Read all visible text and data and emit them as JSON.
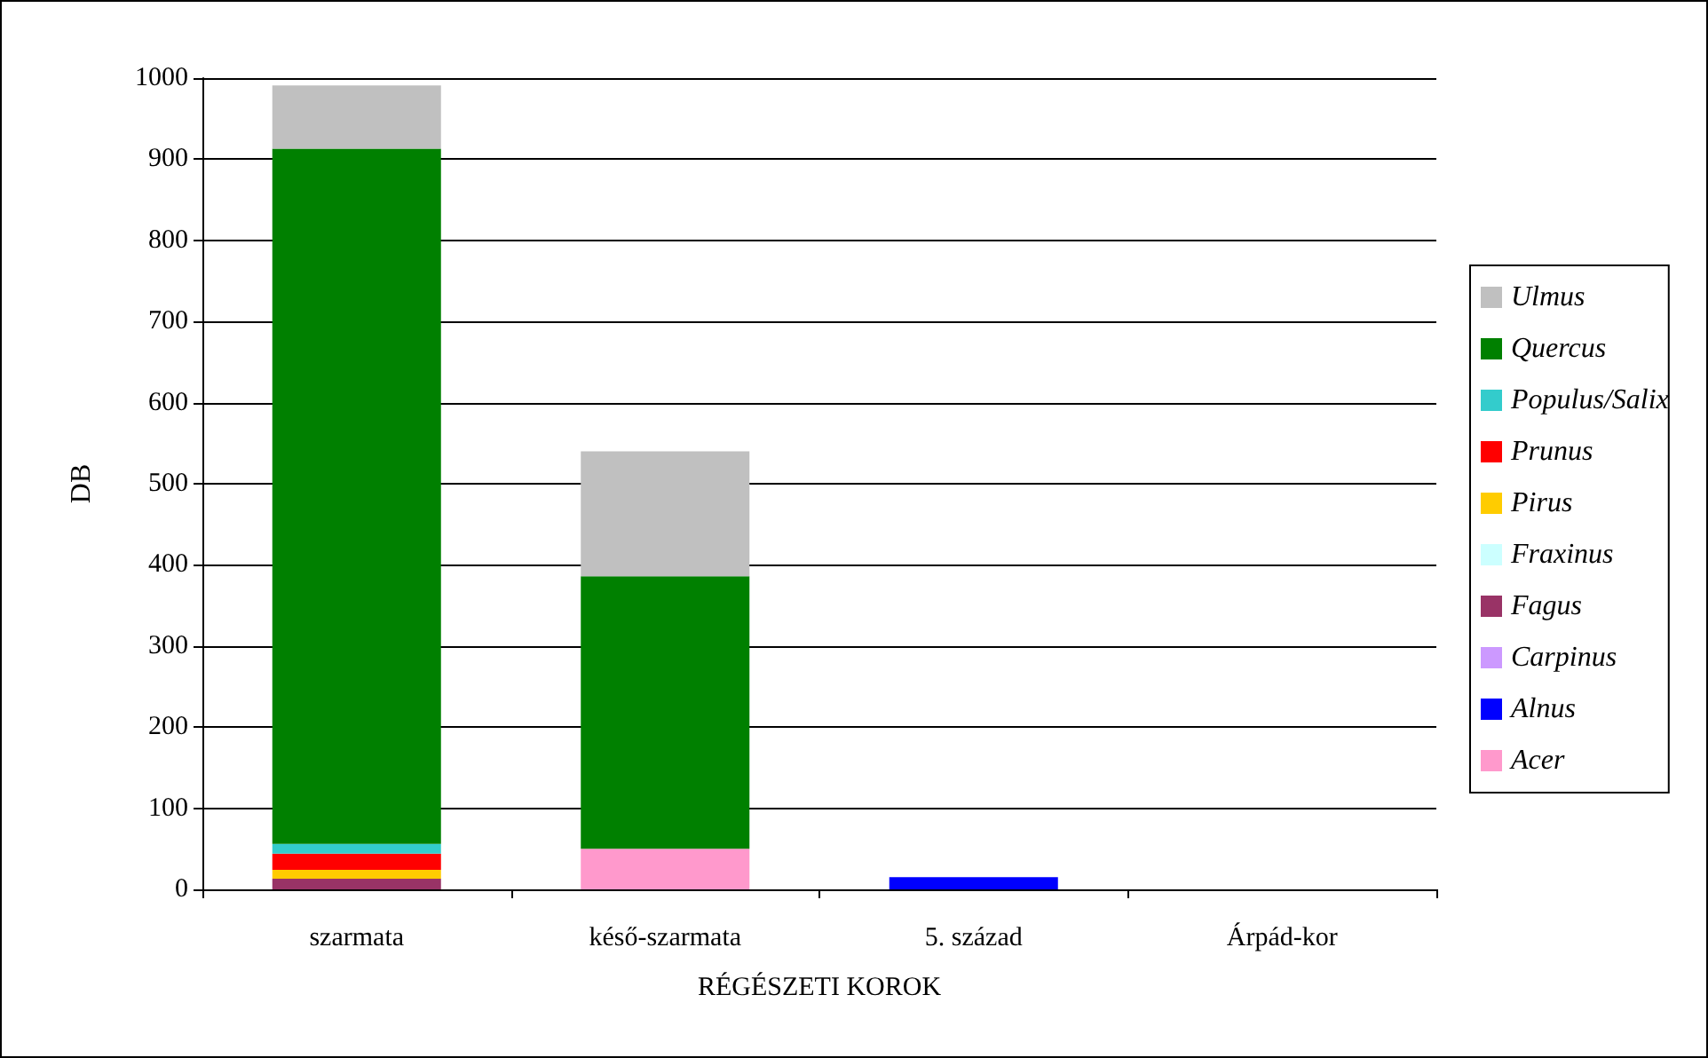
{
  "chart_data": {
    "type": "bar",
    "xlabel": "RÉGÉSZETI KOROK",
    "ylabel": "DB",
    "categories": [
      "szarmata",
      "késő-szarmata",
      "5. század",
      "Árpád-kor"
    ],
    "stacked": true,
    "ylim": [
      0,
      1000
    ],
    "yticks": [
      0,
      100,
      200,
      300,
      400,
      500,
      600,
      700,
      800,
      900,
      1000
    ],
    "grid": "y",
    "legend": "right",
    "series": [
      {
        "name": "Acer",
        "color": "#ff99cc",
        "values": [
          0,
          50,
          0,
          0
        ]
      },
      {
        "name": "Alnus",
        "color": "#0000ff",
        "values": [
          0,
          0,
          15,
          0
        ]
      },
      {
        "name": "Carpinus",
        "color": "#cc99ff",
        "values": [
          0,
          0,
          0,
          0
        ]
      },
      {
        "name": "Fagus",
        "color": "#993366",
        "values": [
          13,
          0,
          0,
          0
        ]
      },
      {
        "name": "Fraxinus",
        "color": "#ccffff",
        "values": [
          0,
          0,
          0,
          0
        ]
      },
      {
        "name": "Pirus",
        "color": "#ffcc00",
        "values": [
          11,
          0,
          0,
          0
        ]
      },
      {
        "name": "Prunus",
        "color": "#ff0000",
        "values": [
          20,
          0,
          0,
          0
        ]
      },
      {
        "name": "Populus/Salix",
        "color": "#33cccc",
        "values": [
          12,
          0,
          0,
          0
        ]
      },
      {
        "name": "Quercus",
        "color": "#008000",
        "values": [
          857,
          336,
          0,
          0
        ]
      },
      {
        "name": "Ulmus",
        "color": "#c0c0c0",
        "values": [
          78,
          154,
          0,
          0
        ]
      }
    ]
  }
}
